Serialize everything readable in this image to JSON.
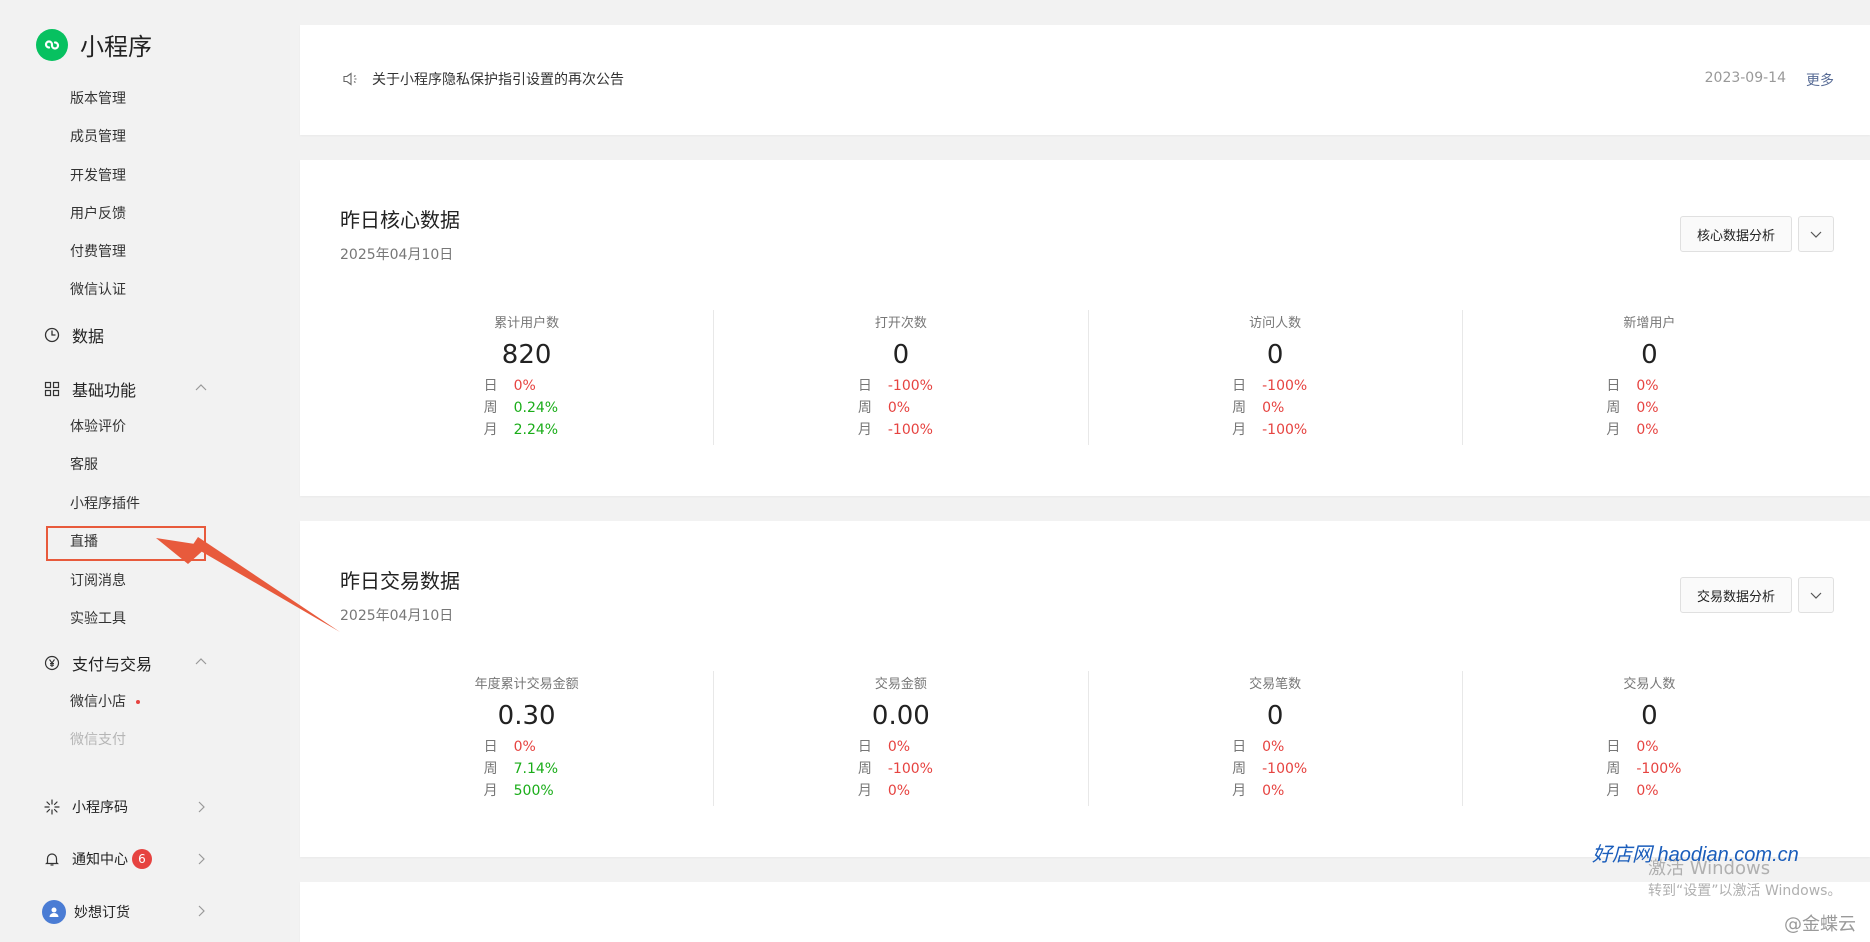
{
  "sidebar": {
    "brand_title": "小程序",
    "top_items": [
      {
        "label": "版本管理"
      },
      {
        "label": "成员管理"
      },
      {
        "label": "开发管理"
      },
      {
        "label": "用户反馈"
      },
      {
        "label": "付费管理"
      },
      {
        "label": "微信认证"
      }
    ],
    "data_group": {
      "label": "数据",
      "icon": "pie-chart-icon"
    },
    "basic_group": {
      "label": "基础功能",
      "icon": "grid-icon",
      "items": [
        {
          "label": "体验评价"
        },
        {
          "label": "客服"
        },
        {
          "label": "小程序插件"
        },
        {
          "label": "直播"
        },
        {
          "label": "订阅消息"
        },
        {
          "label": "实验工具"
        }
      ]
    },
    "pay_group": {
      "label": "支付与交易",
      "icon": "yen-icon",
      "items": [
        {
          "label": "微信小店"
        },
        {
          "label": "微信支付"
        }
      ]
    },
    "qrcode_group": {
      "label": "小程序码",
      "icon": "sparkle-icon"
    },
    "notify_group": {
      "label": "通知中心",
      "icon": "bell-icon",
      "badge": "6"
    },
    "account_group": {
      "label": "妙想订货",
      "icon": "avatar-icon"
    }
  },
  "notice": {
    "icon": "speaker-icon",
    "text": "关于小程序隐私保护指引设置的再次公告",
    "date": "2023-09-14",
    "more_label": "更多"
  },
  "core": {
    "title": "昨日核心数据",
    "date": "2025年04月10日",
    "button_label": "核心数据分析",
    "metrics": [
      {
        "label": "累计用户数",
        "value": "820",
        "rows": [
          [
            "日",
            "0%",
            "neg"
          ],
          [
            "周",
            "0.24%",
            "pos"
          ],
          [
            "月",
            "2.24%",
            "pos"
          ]
        ]
      },
      {
        "label": "打开次数",
        "value": "0",
        "rows": [
          [
            "日",
            "-100%",
            "neg"
          ],
          [
            "周",
            "0%",
            "neg"
          ],
          [
            "月",
            "-100%",
            "neg"
          ]
        ]
      },
      {
        "label": "访问人数",
        "value": "0",
        "rows": [
          [
            "日",
            "-100%",
            "neg"
          ],
          [
            "周",
            "0%",
            "neg"
          ],
          [
            "月",
            "-100%",
            "neg"
          ]
        ]
      },
      {
        "label": "新增用户",
        "value": "0",
        "rows": [
          [
            "日",
            "0%",
            "neg"
          ],
          [
            "周",
            "0%",
            "neg"
          ],
          [
            "月",
            "0%",
            "neg"
          ]
        ]
      }
    ]
  },
  "trade": {
    "title": "昨日交易数据",
    "date": "2025年04月10日",
    "button_label": "交易数据分析",
    "metrics": [
      {
        "label": "年度累计交易金额",
        "value": "0.30",
        "rows": [
          [
            "日",
            "0%",
            "neg"
          ],
          [
            "周",
            "7.14%",
            "pos"
          ],
          [
            "月",
            "500%",
            "pos"
          ]
        ]
      },
      {
        "label": "交易金额",
        "value": "0.00",
        "rows": [
          [
            "日",
            "0%",
            "neg"
          ],
          [
            "周",
            "-100%",
            "neg"
          ],
          [
            "月",
            "0%",
            "neg"
          ]
        ]
      },
      {
        "label": "交易笔数",
        "value": "0",
        "rows": [
          [
            "日",
            "0%",
            "neg"
          ],
          [
            "周",
            "-100%",
            "neg"
          ],
          [
            "月",
            "0%",
            "neg"
          ]
        ]
      },
      {
        "label": "交易人数",
        "value": "0",
        "rows": [
          [
            "日",
            "0%",
            "neg"
          ],
          [
            "周",
            "-100%",
            "neg"
          ],
          [
            "月",
            "0%",
            "neg"
          ]
        ]
      }
    ]
  },
  "overlays": {
    "site_watermark": "好店网 haodian.com.cn",
    "activate_title": "激活 Windows",
    "activate_sub": "转到“设置”以激活 Windows。",
    "corner_mark": "@金蝶云"
  },
  "colors": {
    "accent": "#07c160",
    "positive": "#1aad19",
    "negative": "#e64340",
    "link": "#576b95",
    "annotation": "#e85a3c"
  }
}
